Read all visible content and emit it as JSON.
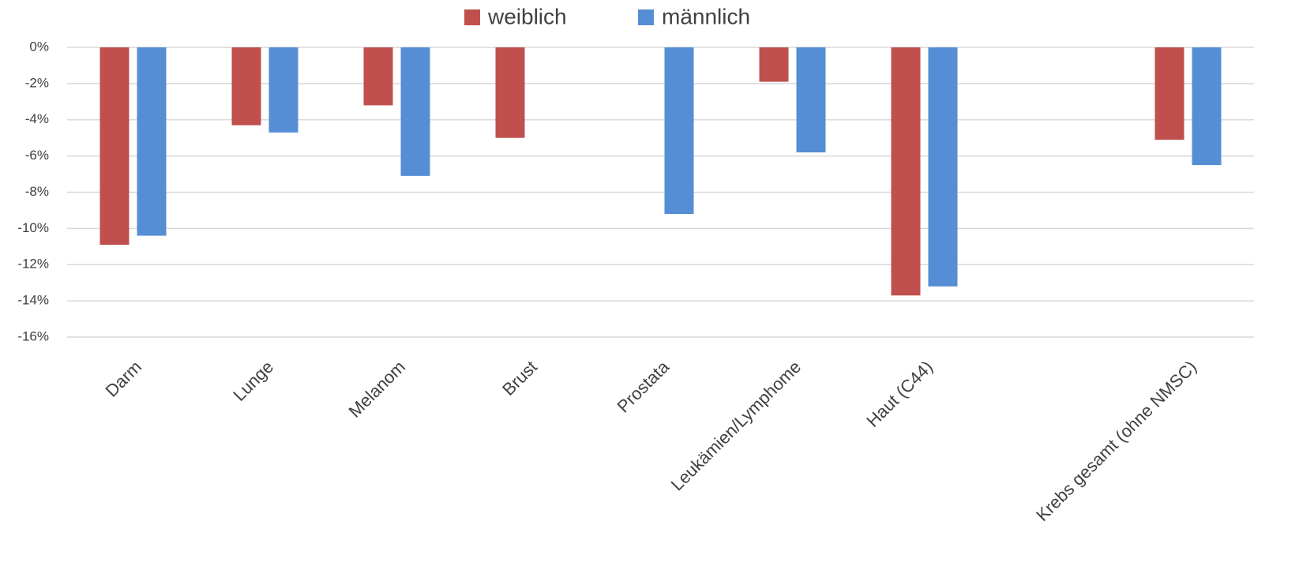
{
  "chart_data": {
    "type": "bar",
    "categories": [
      "Darm",
      "Lunge",
      "Melanom",
      "Brust",
      "Prostata",
      "Leukämien/Lymphome",
      "Haut (C44)",
      null,
      "Krebs gesamt (ohne NMSC)"
    ],
    "series": [
      {
        "name": "weiblich",
        "color": "#c0504d",
        "values": [
          -10.9,
          -4.3,
          -3.2,
          -5.0,
          null,
          -1.9,
          -13.7,
          null,
          -5.1
        ]
      },
      {
        "name": "männlich",
        "color": "#558ed5",
        "values": [
          -10.4,
          -4.7,
          -7.1,
          null,
          -9.2,
          -5.8,
          -13.2,
          null,
          -6.5
        ]
      }
    ],
    "ylim": [
      -16,
      0
    ],
    "yticks": [
      {
        "value": 0,
        "label": "0%"
      },
      {
        "value": -2,
        "label": "-2%"
      },
      {
        "value": -4,
        "label": "-4%"
      },
      {
        "value": -6,
        "label": "-6%"
      },
      {
        "value": -8,
        "label": "-8%"
      },
      {
        "value": -10,
        "label": "-10%"
      },
      {
        "value": -12,
        "label": "-12%"
      },
      {
        "value": -14,
        "label": "-14%"
      },
      {
        "value": -16,
        "label": "-16%"
      }
    ],
    "grid": true,
    "legend": "top"
  }
}
